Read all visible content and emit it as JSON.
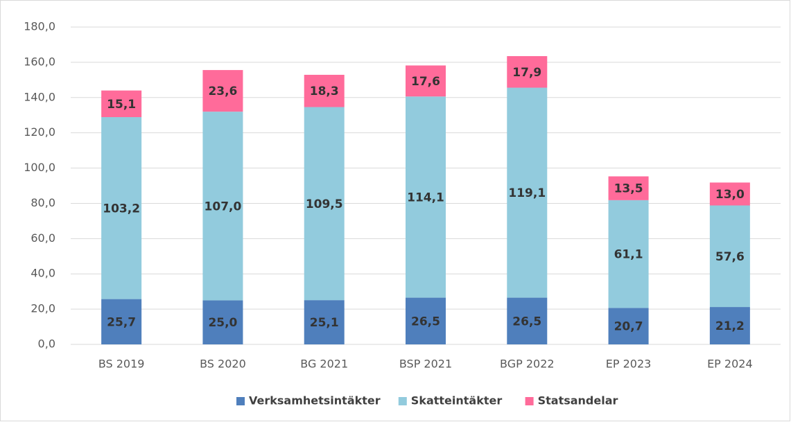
{
  "chart_data": {
    "type": "stacked_bar",
    "categories": [
      "BS 2019",
      "BS 2020",
      "BG 2021",
      "BSP 2021",
      "BGP 2022",
      "EP 2023",
      "EP 2024"
    ],
    "series": [
      {
        "name": "Verksamhetsintäkter",
        "color": "#4f7fbc",
        "values": [
          25.7,
          25.0,
          25.1,
          26.5,
          26.5,
          20.7,
          21.2
        ],
        "value_labels": [
          "25,7",
          "25,0",
          "25,1",
          "26,5",
          "26,5",
          "20,7",
          "21,2"
        ]
      },
      {
        "name": "Skatteintäkter",
        "color": "#92cbdd",
        "values": [
          103.2,
          107.0,
          109.5,
          114.1,
          119.1,
          61.1,
          57.6
        ],
        "value_labels": [
          "103,2",
          "107,0",
          "109,5",
          "114,1",
          "119,1",
          "61,1",
          "57,6"
        ]
      },
      {
        "name": "Statsandelar",
        "color": "#ff6b9a",
        "values": [
          15.1,
          23.6,
          18.3,
          17.6,
          17.9,
          13.5,
          13.0
        ],
        "value_labels": [
          "15,1",
          "23,6",
          "18,3",
          "17,6",
          "17,9",
          "13,5",
          "13,0"
        ]
      }
    ],
    "ylim": [
      0,
      180
    ],
    "yticks": [
      {
        "value": 0,
        "label": "0,0"
      },
      {
        "value": 20,
        "label": "20,0"
      },
      {
        "value": 40,
        "label": "40,0"
      },
      {
        "value": 60,
        "label": "60,0"
      },
      {
        "value": 80,
        "label": "80,0"
      },
      {
        "value": 100,
        "label": "100,0"
      },
      {
        "value": 120,
        "label": "120,0"
      },
      {
        "value": 140,
        "label": "140,0"
      },
      {
        "value": 160,
        "label": "160,0"
      },
      {
        "value": 180,
        "label": "180,0"
      }
    ],
    "grid": true,
    "legend": "bottom"
  }
}
